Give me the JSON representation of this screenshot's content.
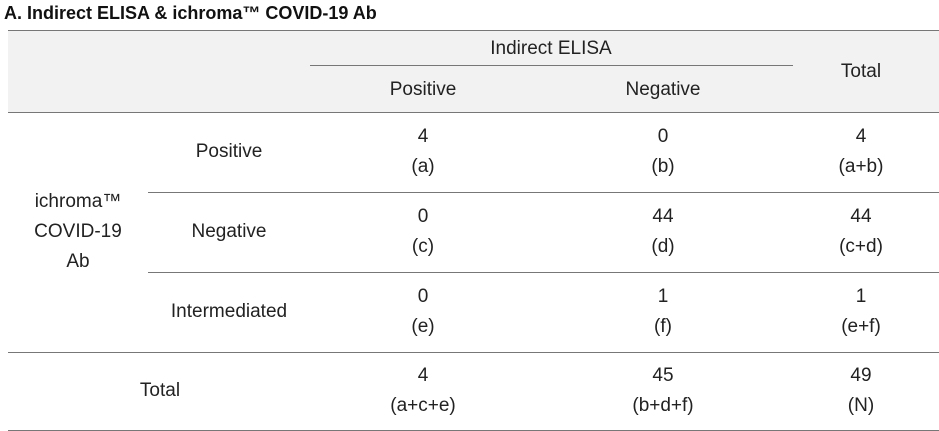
{
  "title": "A. Indirect ELISA & ichroma™ COVID-19 Ab",
  "table": {
    "header": {
      "group": "Indirect ELISA",
      "columns": [
        "Positive",
        "Negative"
      ],
      "total": "Total"
    },
    "row_group": "ichroma™ COVID-19 Ab",
    "rows": [
      {
        "label": "Positive",
        "cells": [
          {
            "count": 4,
            "formula": "(a)"
          },
          {
            "count": 0,
            "formula": "(b)"
          },
          {
            "count": 4,
            "formula": "(a+b)"
          }
        ]
      },
      {
        "label": "Negative",
        "cells": [
          {
            "count": 0,
            "formula": "(c)"
          },
          {
            "count": 44,
            "formula": "(d)"
          },
          {
            "count": 44,
            "formula": "(c+d)"
          }
        ]
      },
      {
        "label": "Intermediated",
        "cells": [
          {
            "count": 0,
            "formula": "(e)"
          },
          {
            "count": 1,
            "formula": "(f)"
          },
          {
            "count": 1,
            "formula": "(e+f)"
          }
        ]
      }
    ],
    "total": {
      "label": "Total",
      "cells": [
        {
          "count": 4,
          "formula": "(a+c+e)"
        },
        {
          "count": 45,
          "formula": "(b+d+f)"
        },
        {
          "count": 49,
          "formula": "(N)"
        }
      ]
    }
  }
}
